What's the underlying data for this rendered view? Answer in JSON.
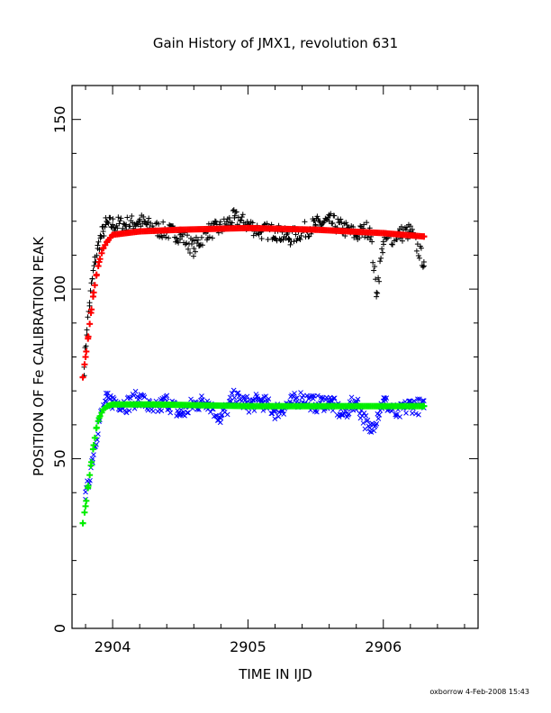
{
  "chart_data": {
    "type": "scatter",
    "title": "Gain History of JMX1, revolution 631",
    "xlabel": "TIME IN IJD",
    "ylabel": "POSITION OF Fe CALIBRATION PEAK",
    "xlim": [
      2903.7,
      2906.7
    ],
    "ylim": [
      0,
      160
    ],
    "xticks": [
      2904,
      2905,
      2906
    ],
    "yticks": [
      0,
      50,
      100,
      150
    ],
    "grid": false,
    "credit": "oxborrow  4-Feb-2008 15:43",
    "colors": {
      "upper_points": "#000000",
      "upper_fit": "#ff0000",
      "lower_points": "#0000ff",
      "lower_fit": "#00ee00"
    },
    "series": [
      {
        "marker": "plus",
        "color": "#000000",
        "x": [
          2903.79,
          2903.81,
          2903.83,
          2903.85,
          2903.87,
          2903.89,
          2903.91,
          2903.93,
          2903.95,
          2904.0,
          2904.1,
          2904.2,
          2904.3,
          2904.4,
          2904.5,
          2904.6,
          2904.7,
          2904.8,
          2904.9,
          2905.0,
          2905.1,
          2905.2,
          2905.3,
          2905.4,
          2905.5,
          2905.6,
          2905.7,
          2905.8,
          2905.9,
          2905.95,
          2906.0,
          2906.1,
          2906.2,
          2906.3
        ],
        "y": [
          77,
          88,
          96,
          103,
          108,
          112,
          115,
          117,
          119,
          119,
          119,
          120,
          118,
          117,
          116,
          112,
          117,
          118,
          121,
          119,
          117,
          117,
          115,
          117,
          119,
          120,
          118,
          116,
          118,
          99,
          114,
          116,
          117,
          108
        ]
      },
      {
        "marker": "plus",
        "color": "#ff0000",
        "x": [
          2903.78,
          2903.8,
          2903.82,
          2903.84,
          2903.86,
          2903.88,
          2903.9,
          2903.93,
          2903.96,
          2904.0,
          2904.2,
          2904.5,
          2905.0,
          2905.5,
          2906.0,
          2906.3
        ],
        "y": [
          74,
          80,
          86,
          93,
          99,
          104,
          108,
          112,
          114,
          116,
          117,
          117.5,
          118,
          117.5,
          116.5,
          115.5
        ]
      },
      {
        "marker": "cross",
        "color": "#0000ff",
        "x": [
          2903.8,
          2903.85,
          2903.9,
          2903.95,
          2904.0,
          2904.1,
          2904.2,
          2904.3,
          2904.4,
          2904.5,
          2904.6,
          2904.7,
          2904.8,
          2904.9,
          2905.0,
          2905.1,
          2905.2,
          2905.3,
          2905.4,
          2905.5,
          2905.6,
          2905.7,
          2905.8,
          2905.9,
          2906.0,
          2906.1,
          2906.2,
          2906.3
        ],
        "y": [
          38,
          50,
          61,
          67,
          67,
          66,
          68,
          64,
          67,
          63,
          66,
          67,
          62,
          68,
          66,
          67,
          64,
          66,
          68,
          66,
          67,
          63,
          67,
          58,
          67,
          63,
          66,
          65
        ]
      },
      {
        "marker": "plus",
        "color": "#00ee00",
        "x": [
          2903.78,
          2903.8,
          2903.82,
          2903.84,
          2903.86,
          2903.88,
          2903.9,
          2903.93,
          2903.96,
          2904.0,
          2904.3,
          2904.6,
          2905.0,
          2905.5,
          2906.0,
          2906.3
        ],
        "y": [
          31,
          36,
          42,
          48,
          54,
          59,
          62,
          64.5,
          65.5,
          66,
          66,
          65.8,
          65.5,
          65.5,
          65.5,
          65.5
        ]
      }
    ]
  }
}
